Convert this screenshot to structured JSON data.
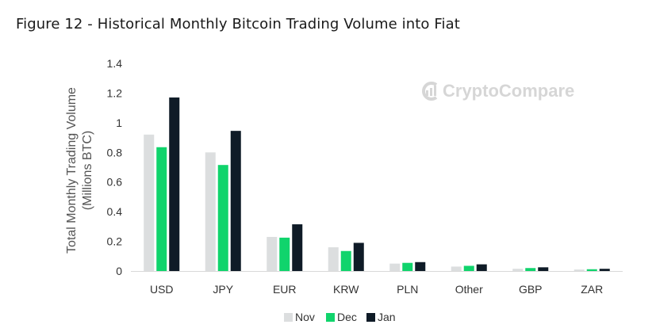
{
  "title": "Figure 12 - Historical Monthly Bitcoin Trading Volume into Fiat",
  "watermark": {
    "text": "CryptoCompare",
    "icon": "cryptocompare-logo-icon"
  },
  "chart_data": {
    "type": "bar",
    "categories": [
      "USD",
      "JPY",
      "EUR",
      "KRW",
      "PLN",
      "Other",
      "GBP",
      "ZAR"
    ],
    "series": [
      {
        "name": "Nov",
        "color": "#dcdedf",
        "values": [
          0.92,
          0.8,
          0.23,
          0.16,
          0.05,
          0.03,
          0.015,
          0.01
        ]
      },
      {
        "name": "Dec",
        "color": "#10d46c",
        "values": [
          0.835,
          0.715,
          0.225,
          0.135,
          0.055,
          0.035,
          0.02,
          0.012
        ]
      },
      {
        "name": "Jan",
        "color": "#0f1b27",
        "values": [
          1.17,
          0.945,
          0.315,
          0.19,
          0.06,
          0.045,
          0.025,
          0.015
        ]
      }
    ],
    "yticks": [
      "0",
      "0.2",
      "0.4",
      "0.6",
      "0.8",
      "1",
      "1.2",
      "1.4"
    ],
    "ylim": [
      0,
      1.4
    ],
    "ylabel": [
      "Total Monthly Trading Volume",
      "(Millions BTC)"
    ],
    "xlabel": "",
    "grid": false,
    "legend_position": "bottom-center"
  }
}
